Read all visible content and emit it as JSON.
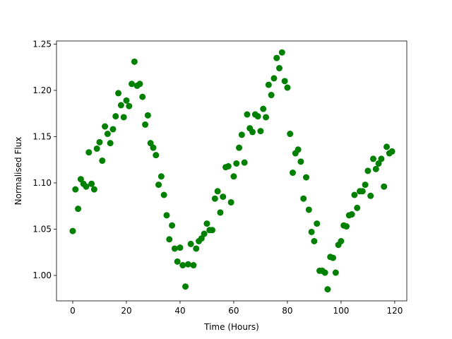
{
  "chart_data": {
    "type": "scatter",
    "x_label": "Time (Hours)",
    "y_label": "Normalised Flux",
    "color": "#008000",
    "x": [
      0,
      1,
      2,
      3,
      4,
      5,
      6,
      7,
      8,
      9,
      10,
      11,
      12,
      13,
      14,
      15,
      16,
      17,
      18,
      19,
      20,
      21,
      22,
      23,
      24,
      25,
      26,
      27,
      28,
      29,
      30,
      31,
      32,
      33,
      34,
      35,
      36,
      37,
      38,
      39,
      40,
      41,
      42,
      43,
      44,
      45,
      46,
      47,
      48,
      49,
      50,
      51,
      52,
      53,
      54,
      55,
      56,
      57,
      58,
      59,
      60,
      61,
      62,
      63,
      64,
      65,
      66,
      67,
      68,
      69,
      70,
      71,
      72,
      73,
      74,
      75,
      76,
      77,
      78,
      79,
      80,
      81,
      82,
      83,
      84,
      85,
      86,
      87,
      88,
      89,
      90,
      91,
      92,
      93,
      94,
      95,
      96,
      97,
      98,
      99,
      100,
      101,
      102,
      103,
      104,
      105,
      106,
      107,
      108,
      109,
      110,
      111,
      112,
      113,
      114,
      115,
      116,
      117,
      118,
      119
    ],
    "values": [
      1.048,
      1.093,
      1.072,
      1.104,
      1.099,
      1.096,
      1.133,
      1.099,
      1.093,
      1.137,
      1.144,
      1.124,
      1.161,
      1.153,
      1.143,
      1.158,
      1.172,
      1.197,
      1.184,
      1.171,
      1.189,
      1.183,
      1.207,
      1.231,
      1.205,
      1.207,
      1.193,
      1.163,
      1.173,
      1.143,
      1.138,
      1.13,
      1.098,
      1.107,
      1.087,
      1.065,
      1.039,
      1.054,
      1.029,
      1.015,
      1.03,
      1.011,
      0.988,
      1.012,
      1.034,
      1.011,
      1.029,
      1.037,
      1.04,
      1.045,
      1.056,
      1.049,
      1.049,
      1.083,
      1.091,
      1.068,
      1.085,
      1.117,
      1.118,
      1.079,
      1.107,
      1.121,
      1.138,
      1.152,
      1.122,
      1.174,
      1.159,
      1.155,
      1.174,
      1.172,
      1.156,
      1.18,
      1.171,
      1.206,
      1.195,
      1.213,
      1.235,
      1.224,
      1.241,
      1.21,
      1.203,
      1.153,
      1.111,
      1.132,
      1.136,
      1.123,
      1.083,
      1.106,
      1.071,
      1.047,
      1.037,
      1.056,
      1.005,
      1.005,
      1.003,
      0.985,
      1.02,
      1.019,
      1.003,
      1.033,
      1.037,
      1.054,
      1.053,
      1.065,
      1.066,
      1.087,
      1.073,
      1.091,
      1.091,
      1.098,
      1.113,
      1.086,
      1.126,
      1.115,
      1.121,
      1.126,
      1.096,
      1.139,
      1.132,
      1.134
    ],
    "xlim": [
      -6.05,
      124.5
    ],
    "ylim": [
      0.9725,
      1.2534
    ],
    "xticks": [
      0,
      20,
      40,
      60,
      80,
      100,
      120
    ],
    "yticks": [
      {
        "value": 1.0,
        "label": "1.00"
      },
      1.05,
      {
        "value": 1.1,
        "label": "1.10"
      },
      1.15,
      {
        "value": 1.2,
        "label": "1.20"
      },
      1.25
    ]
  }
}
